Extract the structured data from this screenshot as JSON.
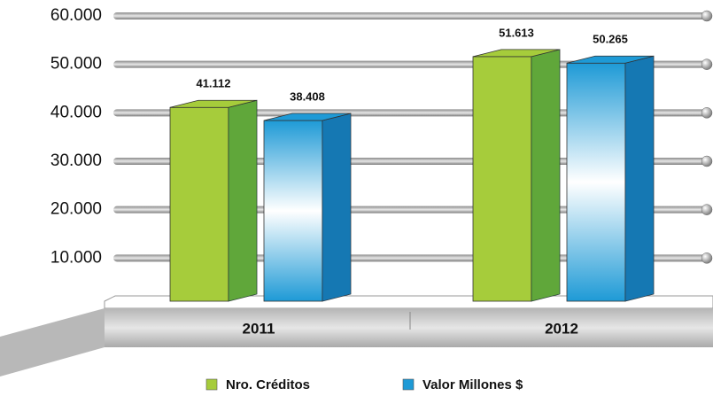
{
  "chart_data": {
    "type": "bar",
    "categories": [
      "2011",
      "2012"
    ],
    "series": [
      {
        "name": "Nro. Créditos",
        "color": "#a6cc3b",
        "values": [
          41112,
          51613
        ],
        "value_labels": [
          "41.112",
          "51.613"
        ]
      },
      {
        "name": "Valor Millones $",
        "color": "#1e9ad6",
        "values": [
          38408,
          50265
        ],
        "value_labels": [
          "38.408",
          "50.265"
        ]
      }
    ],
    "ylim": [
      0,
      60000
    ],
    "yticks": [
      {
        "value": 10000,
        "label": "10.000"
      },
      {
        "value": 20000,
        "label": "20.000"
      },
      {
        "value": 30000,
        "label": "30.000"
      },
      {
        "value": 40000,
        "label": "40.000"
      },
      {
        "value": 50000,
        "label": "50.000"
      },
      {
        "value": 60000,
        "label": "60.000"
      }
    ],
    "grid": true
  }
}
